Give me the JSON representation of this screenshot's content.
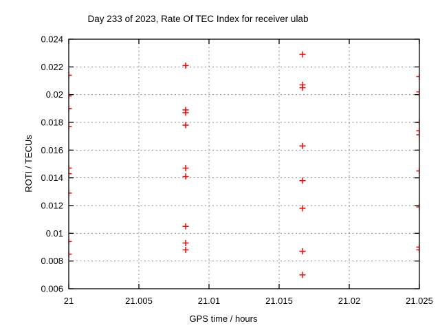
{
  "chart_data": {
    "type": "scatter",
    "title": "Day 233 of 2023, Rate Of TEC Index for receiver ulab",
    "xlabel": "GPS time / hours",
    "ylabel": "ROTI / TECUs",
    "xlim": [
      21,
      21.025
    ],
    "ylim": [
      0.006,
      0.024
    ],
    "x_ticks": [
      21,
      21.005,
      21.01,
      21.015,
      21.02,
      21.025
    ],
    "x_tick_labels": [
      "21",
      "21.005",
      "21.01",
      "21.015",
      "21.02",
      "21.025"
    ],
    "y_ticks": [
      0.006,
      0.008,
      0.01,
      0.012,
      0.014,
      0.016,
      0.018,
      0.02,
      0.022,
      0.024
    ],
    "y_tick_labels": [
      "0.006",
      "0.008",
      "0.01",
      "0.012",
      "0.014",
      "0.016",
      "0.018",
      "0.02",
      "0.022",
      "0.024"
    ],
    "grid": true,
    "legend": "none",
    "marker": "plus",
    "marker_color": "#ff0000",
    "grid_color": "#888888",
    "axis_color": "#000000",
    "series": [
      {
        "name": "ROTI",
        "points": [
          [
            21.0,
            0.0214
          ],
          [
            21.0,
            0.0199
          ],
          [
            21.0,
            0.019
          ],
          [
            21.0,
            0.0177
          ],
          [
            21.0,
            0.0147
          ],
          [
            21.0,
            0.0143
          ],
          [
            21.0,
            0.0129
          ],
          [
            21.0,
            0.0094
          ],
          [
            21.0,
            0.0085
          ],
          [
            21.008333,
            0.0221
          ],
          [
            21.008333,
            0.0189
          ],
          [
            21.008333,
            0.0187
          ],
          [
            21.008333,
            0.0178
          ],
          [
            21.008333,
            0.0147
          ],
          [
            21.008333,
            0.0141
          ],
          [
            21.008333,
            0.0105
          ],
          [
            21.008333,
            0.0093
          ],
          [
            21.008333,
            0.0088
          ],
          [
            21.016667,
            0.0229
          ],
          [
            21.016667,
            0.0207
          ],
          [
            21.016667,
            0.0205
          ],
          [
            21.016667,
            0.0163
          ],
          [
            21.016667,
            0.0138
          ],
          [
            21.016667,
            0.0118
          ],
          [
            21.016667,
            0.0087
          ],
          [
            21.016667,
            0.007
          ],
          [
            21.025,
            0.0213
          ],
          [
            21.025,
            0.0202
          ],
          [
            21.025,
            0.018
          ],
          [
            21.025,
            0.0174
          ],
          [
            21.025,
            0.0171
          ],
          [
            21.025,
            0.0145
          ],
          [
            21.025,
            0.0119
          ],
          [
            21.025,
            0.009
          ],
          [
            21.025,
            0.0088
          ]
        ]
      }
    ]
  }
}
